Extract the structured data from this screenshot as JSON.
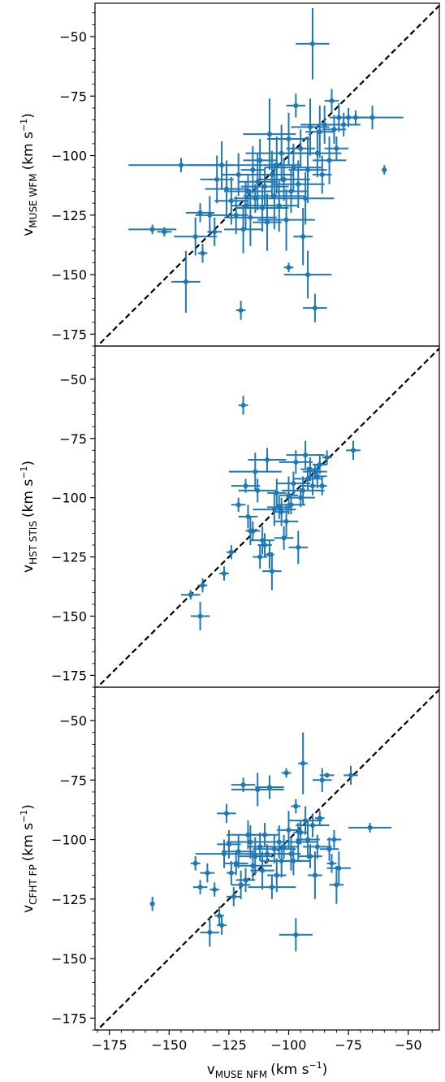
{
  "figure": {
    "shared_xlabel": {
      "main": "v",
      "sub": "MUSE NFM",
      "units": "(km s",
      "sup": "−1",
      "close": ")"
    }
  },
  "chart_data": [
    {
      "type": "scatter",
      "ylabel": {
        "main": "v",
        "sub": "MUSE WFM",
        "units": "(km s",
        "sup": "−1",
        "close": ")"
      },
      "xlim": [
        -181,
        -37
      ],
      "ylim": [
        -180,
        -36
      ],
      "xticks": [
        -175,
        -150,
        -125,
        -100,
        -75,
        -50
      ],
      "yticks": [
        -175,
        -150,
        -125,
        -100,
        -75,
        -50
      ],
      "ytick_labels": [
        "−175",
        "−150",
        "−125",
        "−100",
        "−75",
        "−50"
      ],
      "one_to_one_line": true,
      "color": "#1f77b4",
      "points": [
        [
          -157,
          -131,
          10,
          2
        ],
        [
          -152,
          -132,
          3,
          2
        ],
        [
          -145,
          -104,
          22,
          3
        ],
        [
          -143,
          -153,
          6,
          13
        ],
        [
          -139,
          -134,
          9,
          8
        ],
        [
          -137,
          -124,
          6,
          4
        ],
        [
          -136,
          -141,
          2,
          4
        ],
        [
          -133,
          -125,
          6,
          8
        ],
        [
          -131,
          -132,
          3,
          6
        ],
        [
          -130,
          -110,
          7,
          10
        ],
        [
          -128,
          -104,
          14,
          10
        ],
        [
          -126,
          -114,
          9,
          12
        ],
        [
          -124,
          -119,
          7,
          10
        ],
        [
          -122,
          -125,
          5,
          8
        ],
        [
          -121,
          -108,
          7,
          9
        ],
        [
          -120,
          -165,
          2,
          4
        ],
        [
          -119,
          -131,
          8,
          10
        ],
        [
          -118,
          -121,
          6,
          10
        ],
        [
          -117,
          -115,
          10,
          7
        ],
        [
          -116,
          -126,
          11,
          12
        ],
        [
          -115,
          -106,
          5,
          10
        ],
        [
          -114,
          -118,
          9,
          6
        ],
        [
          -113,
          -111,
          8,
          12
        ],
        [
          -112,
          -102,
          7,
          9
        ],
        [
          -111,
          -122,
          11,
          10
        ],
        [
          -110,
          -113,
          10,
          8
        ],
        [
          -109,
          -128,
          6,
          12
        ],
        [
          -108,
          -91,
          11,
          15
        ],
        [
          -107,
          -108,
          9,
          10
        ],
        [
          -106,
          -117,
          13,
          14
        ],
        [
          -105,
          -104,
          10,
          12
        ],
        [
          -104,
          -121,
          8,
          11
        ],
        [
          -103,
          -99,
          15,
          12
        ],
        [
          -102,
          -110,
          11,
          9
        ],
        [
          -101,
          -127,
          12,
          13
        ],
        [
          -100,
          -147,
          2,
          2
        ],
        [
          -100,
          -93,
          9,
          11
        ],
        [
          -99,
          -115,
          7,
          9
        ],
        [
          -98,
          -105,
          12,
          10
        ],
        [
          -97,
          -79,
          4,
          5
        ],
        [
          -96,
          -112,
          11,
          10
        ],
        [
          -95,
          -97,
          6,
          8
        ],
        [
          -94,
          -134,
          4,
          12
        ],
        [
          -93,
          -118,
          12,
          11
        ],
        [
          -92,
          -150,
          10,
          10
        ],
        [
          -92,
          -106,
          8,
          14
        ],
        [
          -91,
          -88,
          8,
          12
        ],
        [
          -90,
          -53,
          7,
          15
        ],
        [
          -89,
          -164,
          5,
          6
        ],
        [
          -88,
          -99,
          10,
          10
        ],
        [
          -87,
          -90,
          6,
          11
        ],
        [
          -86,
          -108,
          4,
          8
        ],
        [
          -85,
          -87,
          10,
          8
        ],
        [
          -83,
          -102,
          7,
          10
        ],
        [
          -82,
          -77,
          3,
          5
        ],
        [
          -81,
          -89,
          5,
          6
        ],
        [
          -80,
          -97,
          5,
          5
        ],
        [
          -79,
          -84,
          4,
          6
        ],
        [
          -77,
          -87,
          7,
          5
        ],
        [
          -75,
          -84,
          6,
          4
        ],
        [
          -72,
          -84,
          8,
          3
        ],
        [
          -65,
          -84,
          13,
          5
        ],
        [
          -60,
          -106,
          1,
          2
        ]
      ]
    },
    {
      "type": "scatter",
      "ylabel": {
        "main": "v",
        "sub": "HST STIS",
        "units": "(km s",
        "sup": "−1",
        "close": ")"
      },
      "xlim": [
        -181,
        -37
      ],
      "ylim": [
        -180,
        -36
      ],
      "xticks": [
        -175,
        -150,
        -125,
        -100,
        -75,
        -50
      ],
      "yticks": [
        -175,
        -150,
        -125,
        -100,
        -75,
        -50
      ],
      "ytick_labels": [
        "−175",
        "−150",
        "−125",
        "−100",
        "−75",
        "−50"
      ],
      "one_to_one_line": true,
      "color": "#1f77b4",
      "points": [
        [
          -141,
          -141,
          4,
          2
        ],
        [
          -137,
          -150,
          4,
          6
        ],
        [
          -136,
          -137,
          2,
          3
        ],
        [
          -127,
          -132,
          2,
          3
        ],
        [
          -124,
          -123,
          2,
          3
        ],
        [
          -121,
          -103,
          3,
          3
        ],
        [
          -119,
          -61,
          2,
          4
        ],
        [
          -118,
          -95,
          6,
          3
        ],
        [
          -117,
          -108,
          4,
          5
        ],
        [
          -116,
          -114,
          2,
          6
        ],
        [
          -115,
          -114,
          3,
          4
        ],
        [
          -114,
          -89,
          11,
          8
        ],
        [
          -113,
          -97,
          8,
          5
        ],
        [
          -112,
          -125,
          3,
          5
        ],
        [
          -111,
          -118,
          5,
          6
        ],
        [
          -110,
          -120,
          3,
          5
        ],
        [
          -109,
          -84,
          8,
          5
        ],
        [
          -108,
          -124,
          2,
          6
        ],
        [
          -107,
          -131,
          4,
          8
        ],
        [
          -106,
          -105,
          9,
          7
        ],
        [
          -105,
          -98,
          4,
          6
        ],
        [
          -104,
          -104,
          5,
          5
        ],
        [
          -103,
          -106,
          3,
          6
        ],
        [
          -102,
          -117,
          4,
          5
        ],
        [
          -101,
          -110,
          5,
          7
        ],
        [
          -100,
          -99,
          4,
          8
        ],
        [
          -99,
          -103,
          6,
          4
        ],
        [
          -98,
          -94,
          7,
          5
        ],
        [
          -97,
          -85,
          7,
          5
        ],
        [
          -96,
          -121,
          4,
          7
        ],
        [
          -95,
          -100,
          6,
          4
        ],
        [
          -94,
          -97,
          9,
          6
        ],
        [
          -93,
          -82,
          8,
          6
        ],
        [
          -92,
          -92,
          6,
          5
        ],
        [
          -91,
          -88,
          4,
          5
        ],
        [
          -90,
          -95,
          5,
          4
        ],
        [
          -89,
          -89,
          5,
          3
        ],
        [
          -88,
          -91,
          4,
          5
        ],
        [
          -87,
          -86,
          3,
          4
        ],
        [
          -86,
          -95,
          2,
          4
        ],
        [
          -84,
          -83,
          2,
          3
        ],
        [
          -73,
          -80,
          3,
          4
        ]
      ]
    },
    {
      "type": "scatter",
      "ylabel": {
        "main": "v",
        "sub": "CFHT FP",
        "units": "(km s",
        "sup": "−1",
        "close": ")"
      },
      "xlabel": {
        "main": "v",
        "sub": "MUSE NFM",
        "units": "(km s",
        "sup": "−1",
        "close": ")"
      },
      "xlim": [
        -181,
        -37
      ],
      "ylim": [
        -180,
        -36
      ],
      "xticks": [
        -175,
        -150,
        -125,
        -100,
        -75,
        -50
      ],
      "xtick_labels": [
        "−175",
        "−150",
        "−125",
        "−100",
        "−75",
        "−50"
      ],
      "yticks": [
        -175,
        -150,
        -125,
        -100,
        -75,
        -50
      ],
      "ytick_labels": [
        "−175",
        "−150",
        "−125",
        "−100",
        "−75",
        "−50"
      ],
      "one_to_one_line": true,
      "color": "#1f77b4",
      "points": [
        [
          -157,
          -127,
          1,
          3
        ],
        [
          -139,
          -110,
          2,
          3
        ],
        [
          -137,
          -120,
          3,
          3
        ],
        [
          -134,
          -114,
          3,
          4
        ],
        [
          -133,
          -139,
          4,
          6
        ],
        [
          -131,
          -121,
          2,
          3
        ],
        [
          -129,
          -132,
          2,
          4
        ],
        [
          -128,
          -136,
          2,
          4
        ],
        [
          -127,
          -106,
          12,
          6
        ],
        [
          -126,
          -89,
          4,
          4
        ],
        [
          -125,
          -102,
          5,
          6
        ],
        [
          -124,
          -114,
          2,
          5
        ],
        [
          -123,
          -124,
          3,
          4
        ],
        [
          -122,
          -110,
          5,
          5
        ],
        [
          -121,
          -105,
          7,
          7
        ],
        [
          -120,
          -119,
          4,
          6
        ],
        [
          -119,
          -77,
          5,
          3
        ],
        [
          -118,
          -117,
          4,
          5
        ],
        [
          -117,
          -98,
          9,
          6
        ],
        [
          -116,
          -101,
          10,
          7
        ],
        [
          -115,
          -111,
          8,
          6
        ],
        [
          -114,
          -107,
          7,
          8
        ],
        [
          -113,
          -79,
          11,
          7
        ],
        [
          -112,
          -103,
          5,
          6
        ],
        [
          -111,
          -113,
          5,
          8
        ],
        [
          -110,
          -98,
          6,
          5
        ],
        [
          -109,
          -106,
          7,
          4
        ],
        [
          -108,
          -78,
          6,
          5
        ],
        [
          -107,
          -120,
          10,
          5
        ],
        [
          -106,
          -104,
          9,
          6
        ],
        [
          -105,
          -115,
          4,
          7
        ],
        [
          -104,
          -101,
          8,
          7
        ],
        [
          -103,
          -109,
          9,
          7
        ],
        [
          -102,
          -103,
          6,
          5
        ],
        [
          -101,
          -72,
          2,
          2
        ],
        [
          -100,
          -96,
          5,
          8
        ],
        [
          -99,
          -106,
          4,
          7
        ],
        [
          -98,
          -109,
          7,
          6
        ],
        [
          -97,
          -140,
          7,
          7
        ],
        [
          -97,
          -86,
          2,
          3
        ],
        [
          -96,
          -101,
          8,
          8
        ],
        [
          -95,
          -97,
          3,
          5
        ],
        [
          -94,
          -68,
          2,
          13
        ],
        [
          -93,
          -92,
          7,
          6
        ],
        [
          -92,
          -100,
          5,
          8
        ],
        [
          -91,
          -107,
          5,
          5
        ],
        [
          -90,
          -94,
          7,
          5
        ],
        [
          -89,
          -115,
          3,
          10
        ],
        [
          -88,
          -103,
          6,
          5
        ],
        [
          -87,
          -91,
          2,
          3
        ],
        [
          -86,
          -75,
          4,
          5
        ],
        [
          -84,
          -73,
          3,
          1
        ],
        [
          -83,
          -104,
          4,
          5
        ],
        [
          -82,
          -110,
          2,
          4
        ],
        [
          -81,
          -100,
          3,
          4
        ],
        [
          -80,
          -119,
          3,
          8
        ],
        [
          -79,
          -112,
          5,
          7
        ],
        [
          -74,
          -73,
          3,
          4
        ],
        [
          -66,
          -95,
          9,
          2
        ]
      ]
    }
  ]
}
